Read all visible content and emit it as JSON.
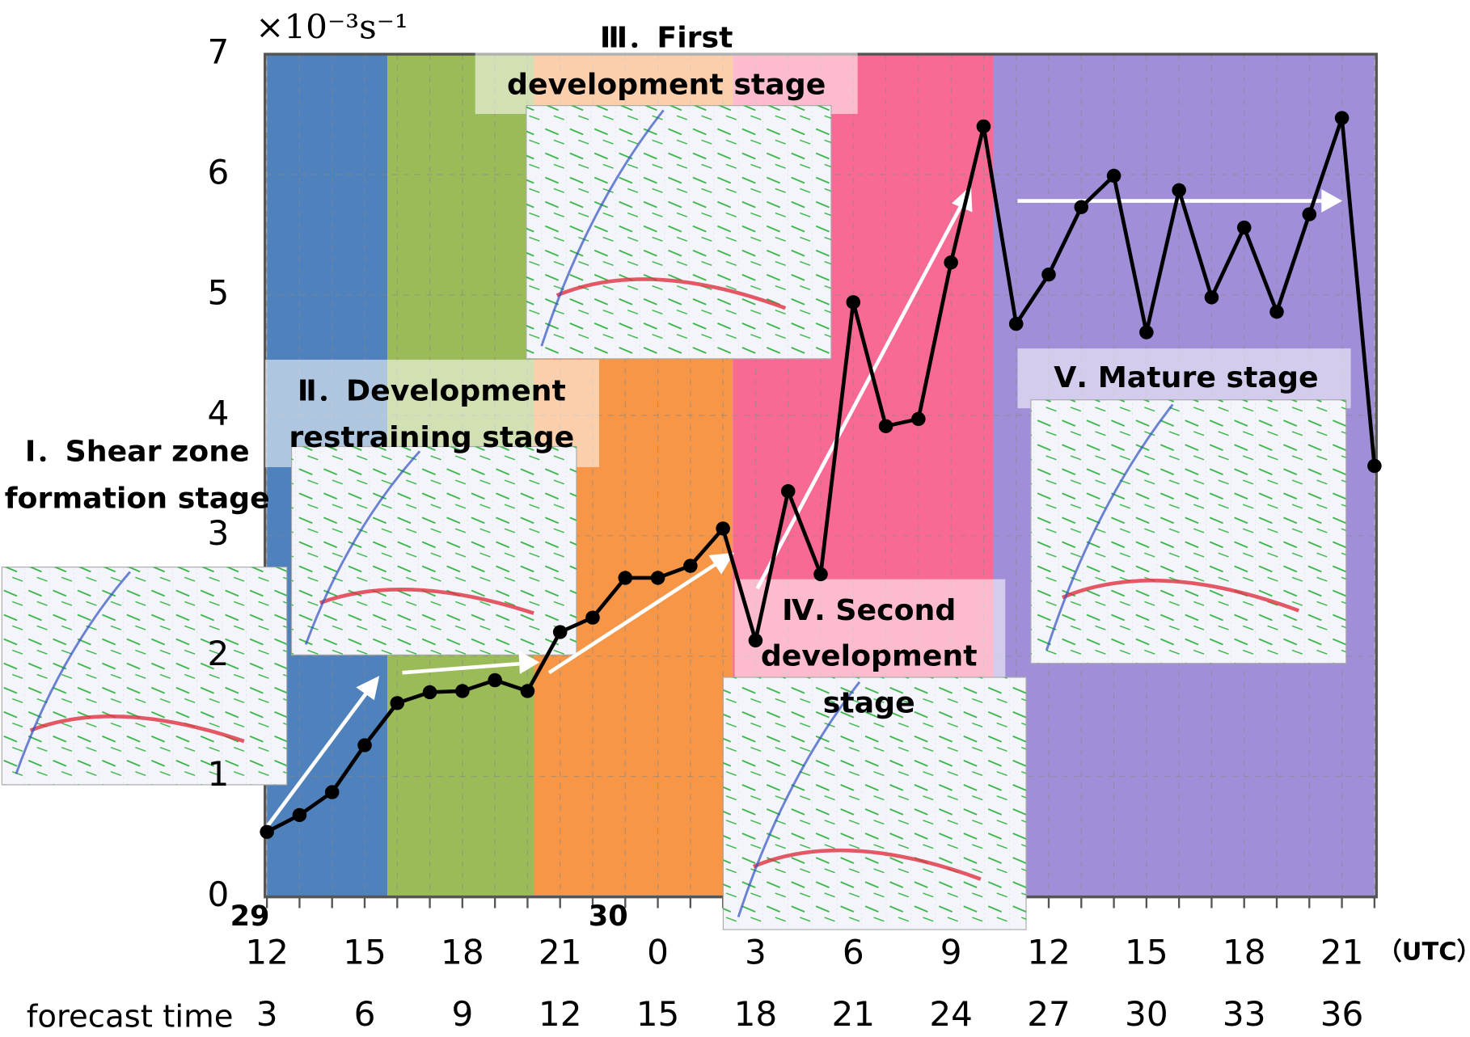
{
  "chart_data": {
    "type": "line",
    "unit_label": "×10⁻³s⁻¹",
    "x": [
      3,
      4,
      5,
      6,
      7,
      8,
      9,
      10,
      11,
      12,
      13,
      14,
      15,
      16,
      17,
      18,
      19,
      20,
      21,
      22,
      23,
      24,
      25,
      26,
      27,
      28,
      29,
      30,
      31,
      32,
      33,
      34,
      35,
      36,
      37
    ],
    "values": [
      0.54,
      0.68,
      0.87,
      1.26,
      1.61,
      1.7,
      1.71,
      1.8,
      1.71,
      2.2,
      2.32,
      2.65,
      2.65,
      2.75,
      3.06,
      2.13,
      3.37,
      2.68,
      4.94,
      3.91,
      3.97,
      5.27,
      6.4,
      4.76,
      5.17,
      5.73,
      5.99,
      4.69,
      5.87,
      4.98,
      5.56,
      4.86,
      5.67,
      6.47,
      3.58
    ],
    "color": "#000000",
    "xlim": [
      3,
      37
    ],
    "ylim": [
      0,
      7
    ],
    "yticks": [
      0,
      1,
      2,
      3,
      4,
      5,
      6,
      7
    ],
    "xticks": [
      {
        "value": 3,
        "label": "12"
      },
      {
        "value": 6,
        "label": "15"
      },
      {
        "value": 9,
        "label": "18"
      },
      {
        "value": 12,
        "label": "21"
      },
      {
        "value": 15,
        "label": "0"
      },
      {
        "value": 18,
        "label": "3"
      },
      {
        "value": 21,
        "label": "6"
      },
      {
        "value": 24,
        "label": "9"
      },
      {
        "value": 27,
        "label": "12"
      },
      {
        "value": 30,
        "label": "15"
      },
      {
        "value": 33,
        "label": "18"
      },
      {
        "value": 36,
        "label": "21"
      }
    ],
    "x_unit_label": "（UTC）",
    "day_labels": [
      {
        "value": 3,
        "label": "29"
      },
      {
        "value": 14,
        "label": "30"
      }
    ],
    "forecast_label": "forecast time",
    "forecast_ticks": [
      3,
      6,
      9,
      12,
      15,
      18,
      21,
      24,
      27,
      30,
      33,
      36
    ],
    "grid": true,
    "stages": [
      {
        "lines": [
          "Ⅰ．Shear zone",
          "formation stage"
        ],
        "start": 3,
        "end": 6.7,
        "color": "#4f81bd"
      },
      {
        "lines": [
          "Ⅱ．Development",
          "restraining stage"
        ],
        "start": 6.7,
        "end": 11.2,
        "color": "#9bbb59"
      },
      {
        "lines": [
          "Ⅲ．First",
          "development stage"
        ],
        "start": 11.2,
        "end": 17.3,
        "color": "#f79646"
      },
      {
        "lines": [
          "Ⅳ. Second",
          "development",
          "stage"
        ],
        "start": 17.3,
        "end": 25.3,
        "color": "#f86a93"
      },
      {
        "lines": [
          "Ⅴ. Mature stage"
        ],
        "start": 25.3,
        "end": 37,
        "color": "#a08fd8"
      }
    ]
  }
}
